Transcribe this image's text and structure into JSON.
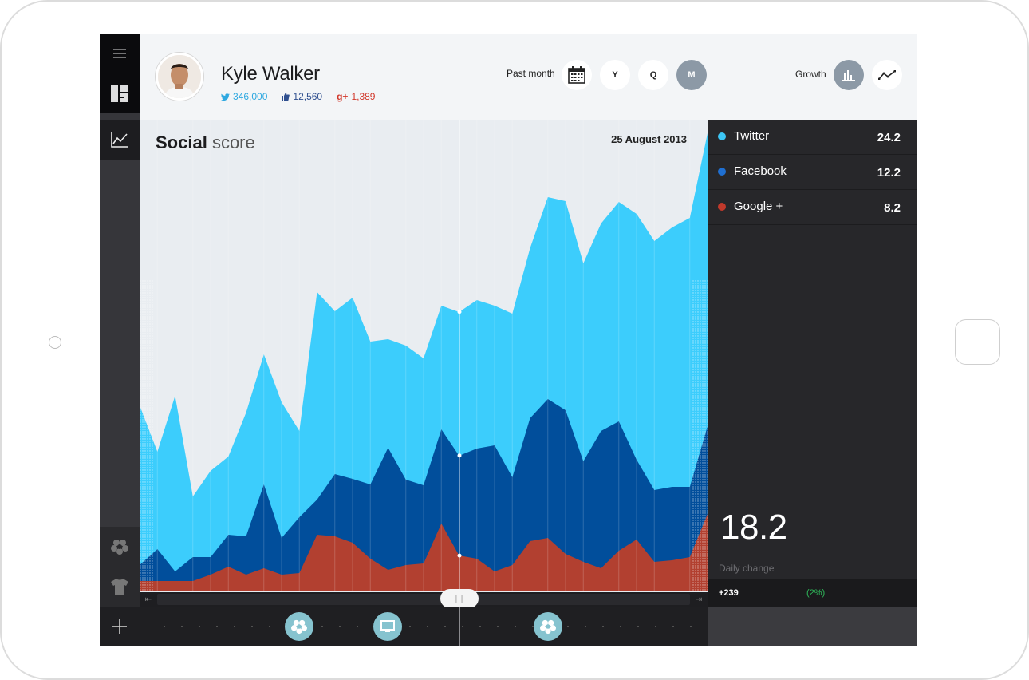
{
  "profile": {
    "name": "Kyle Walker",
    "twitter_count": "346,000",
    "facebook_count": "12,560",
    "gplus_label": "g+",
    "gplus_count": "1,389"
  },
  "period": {
    "label": "Past month",
    "buttons": [
      "Y",
      "Q",
      "M"
    ],
    "active": "M"
  },
  "growth": {
    "label": "Growth"
  },
  "chart": {
    "title_bold": "Social",
    "title_light": "score",
    "date": "25 August 2013"
  },
  "legend": [
    {
      "name": "Twitter",
      "value": "24.2",
      "color": "#3cc6f5"
    },
    {
      "name": "Facebook",
      "value": "12.2",
      "color": "#1f6fd1"
    },
    {
      "name": "Google +",
      "value": "8.2",
      "color": "#c0392b"
    }
  ],
  "summary": {
    "value": "18.2",
    "label": "Daily change",
    "change": "+239",
    "percent": "(2%)"
  },
  "colors": {
    "twitter": "#3ccdfc",
    "facebook": "#014e9b",
    "google": "#b24030",
    "chart_bg": "#e9edf1",
    "panel_bg": "#27272a",
    "positive": "#2fbe5c"
  },
  "chart_data": {
    "type": "area",
    "stacked": true,
    "x": [
      1,
      2,
      3,
      4,
      5,
      6,
      7,
      8,
      9,
      10,
      11,
      12,
      13,
      14,
      15,
      16,
      17,
      18,
      19,
      20,
      21,
      22,
      23,
      24,
      25,
      26,
      27,
      28,
      29,
      30,
      31,
      32,
      33
    ],
    "series": [
      {
        "name": "Twitter",
        "values": [
          200,
          122,
          220,
          76,
          108,
          98,
          155,
          163,
          170,
          108,
          260,
          204,
          227,
          179,
          136,
          168,
          159,
          155,
          180,
          186,
          175,
          205,
          213,
          253,
          262,
          248,
          260,
          275,
          308,
          312,
          325,
          337,
          367
        ]
      },
      {
        "name": "Facebook",
        "values": [
          20,
          40,
          12,
          30,
          22,
          40,
          48,
          105,
          46,
          70,
          44,
          78,
          80,
          93,
          153,
          107,
          98,
          118,
          125,
          138,
          158,
          110,
          154,
          174,
          180,
          126,
          172,
          162,
          100,
          90,
          92,
          88,
          110
        ]
      },
      {
        "name": "Google+",
        "values": [
          12,
          12,
          12,
          12,
          20,
          30,
          20,
          28,
          20,
          22,
          70,
          68,
          60,
          40,
          26,
          32,
          34,
          84,
          44,
          40,
          24,
          32,
          62,
          66,
          46,
          36,
          28,
          50,
          64,
          36,
          38,
          42,
          96
        ]
      }
    ]
  }
}
